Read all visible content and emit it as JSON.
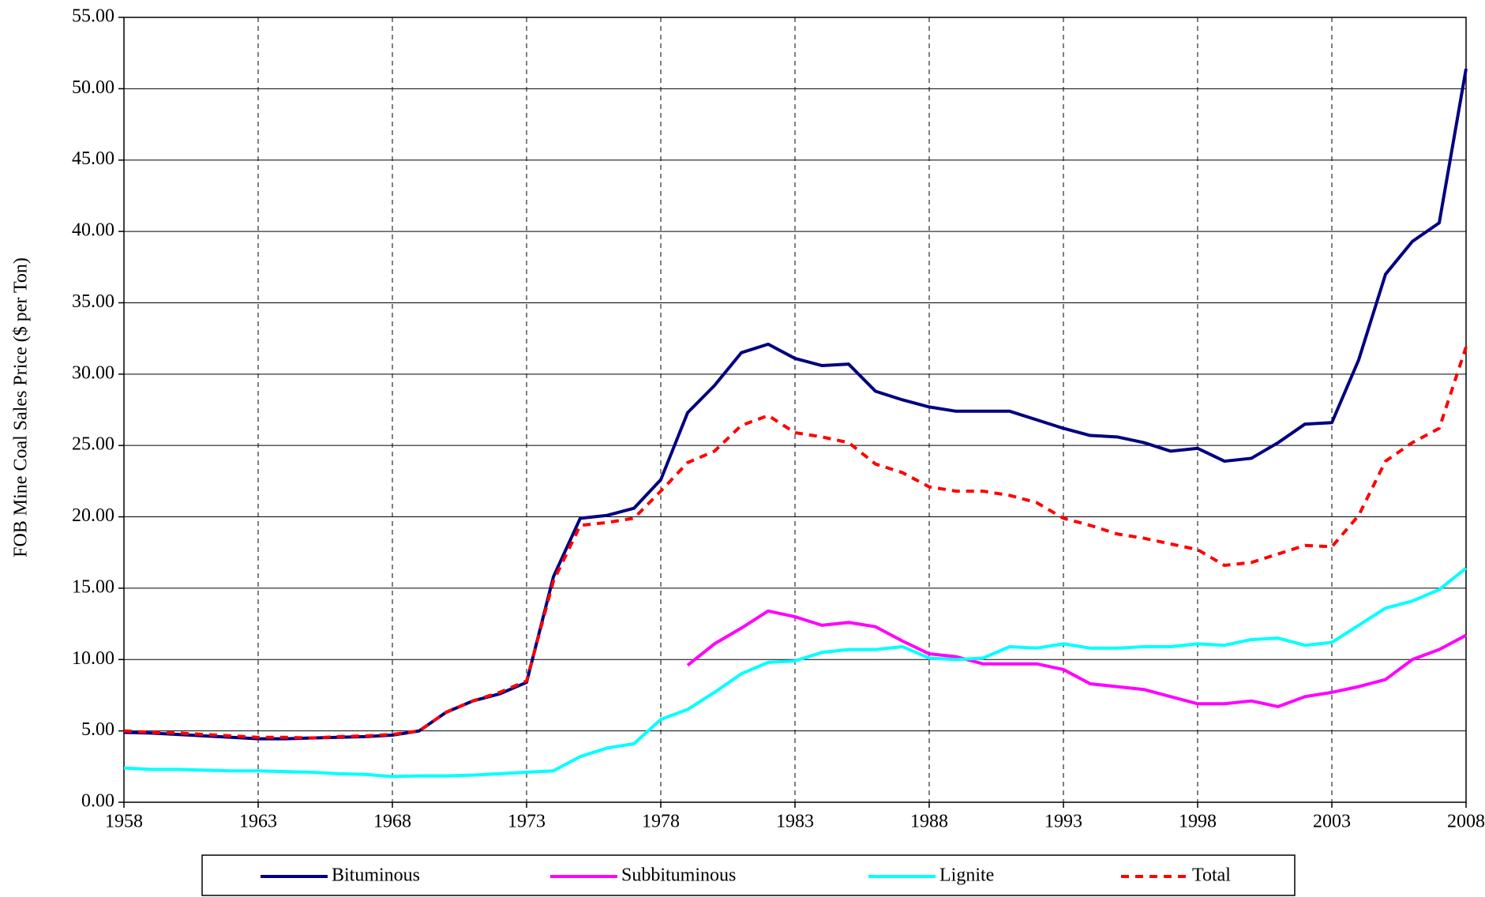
{
  "chart_data": {
    "type": "line",
    "y_label": "FOB Mine Coal Sales Price ($ per Ton)",
    "x": [
      1958,
      1959,
      1960,
      1961,
      1962,
      1963,
      1964,
      1965,
      1966,
      1967,
      1968,
      1969,
      1970,
      1971,
      1972,
      1973,
      1974,
      1975,
      1976,
      1977,
      1978,
      1979,
      1980,
      1981,
      1982,
      1983,
      1984,
      1985,
      1986,
      1987,
      1988,
      1989,
      1990,
      1991,
      1992,
      1993,
      1994,
      1995,
      1996,
      1997,
      1998,
      1999,
      2000,
      2001,
      2002,
      2003,
      2004,
      2005,
      2006,
      2007,
      2008
    ],
    "xlim": [
      1958,
      2008
    ],
    "xticks": [
      1958,
      1963,
      1968,
      1973,
      1978,
      1983,
      1988,
      1993,
      1998,
      2003,
      2008
    ],
    "ylim": [
      0,
      55
    ],
    "yticks": [
      {
        "value": 0,
        "label": "0.00"
      },
      {
        "value": 5,
        "label": "5.00"
      },
      {
        "value": 10,
        "label": "10.00"
      },
      {
        "value": 15,
        "label": "15.00"
      },
      {
        "value": 20,
        "label": "20.00"
      },
      {
        "value": 25,
        "label": "25.00"
      },
      {
        "value": 30,
        "label": "30.00"
      },
      {
        "value": 35,
        "label": "35.00"
      },
      {
        "value": 40,
        "label": "40.00"
      },
      {
        "value": 45,
        "label": "45.00"
      },
      {
        "value": 50,
        "label": "50.00"
      },
      {
        "value": 55,
        "label": "55.00"
      }
    ],
    "grid": true,
    "legend": "bottom",
    "series": [
      {
        "name": "Bituminous",
        "color": "#000080",
        "dash": false,
        "values": [
          4.9,
          4.85,
          4.75,
          4.65,
          4.55,
          4.45,
          4.45,
          4.5,
          4.55,
          4.6,
          4.7,
          5.0,
          6.3,
          7.1,
          7.6,
          8.4,
          15.8,
          19.9,
          20.1,
          20.6,
          22.6,
          27.3,
          29.2,
          31.5,
          32.1,
          31.1,
          30.6,
          30.7,
          28.8,
          28.2,
          27.7,
          27.4,
          27.4,
          27.4,
          26.8,
          26.2,
          25.7,
          25.6,
          25.2,
          24.6,
          24.8,
          23.9,
          24.1,
          25.2,
          26.5,
          26.6,
          31.0,
          37.0,
          39.3,
          40.6,
          51.4
        ]
      },
      {
        "name": "Subbituminous",
        "color": "#ff00ff",
        "dash": false,
        "values": [
          null,
          null,
          null,
          null,
          null,
          null,
          null,
          null,
          null,
          null,
          null,
          null,
          null,
          null,
          null,
          null,
          null,
          null,
          null,
          null,
          null,
          9.6,
          11.1,
          12.2,
          13.4,
          13.0,
          12.4,
          12.6,
          12.3,
          11.3,
          10.4,
          10.2,
          9.7,
          9.7,
          9.7,
          9.3,
          8.3,
          8.1,
          7.9,
          7.4,
          6.9,
          6.9,
          7.1,
          6.7,
          7.4,
          7.7,
          8.1,
          8.6,
          10.0,
          10.7,
          11.7
        ]
      },
      {
        "name": "Lignite",
        "color": "#00ffff",
        "dash": false,
        "values": [
          2.4,
          2.3,
          2.3,
          2.25,
          2.2,
          2.2,
          2.15,
          2.1,
          2.0,
          1.95,
          1.8,
          1.85,
          1.85,
          1.9,
          2.0,
          2.1,
          2.2,
          3.2,
          3.8,
          4.1,
          5.8,
          6.5,
          7.7,
          9.0,
          9.8,
          9.9,
          10.5,
          10.7,
          10.7,
          10.9,
          10.1,
          10.0,
          10.1,
          10.9,
          10.8,
          11.1,
          10.8,
          10.8,
          10.9,
          10.9,
          11.1,
          11.0,
          11.4,
          11.5,
          11.0,
          11.2,
          12.4,
          13.6,
          14.1,
          14.9,
          16.4
        ]
      },
      {
        "name": "Total",
        "color": "#ff0000",
        "dash": true,
        "values": [
          5.0,
          4.9,
          4.85,
          4.75,
          4.65,
          4.55,
          4.55,
          4.5,
          4.6,
          4.65,
          4.75,
          5.0,
          6.3,
          7.1,
          7.7,
          8.5,
          15.5,
          19.4,
          19.6,
          19.9,
          21.8,
          23.8,
          24.6,
          26.4,
          27.1,
          25.9,
          25.6,
          25.2,
          23.7,
          23.1,
          22.1,
          21.8,
          21.8,
          21.5,
          21.0,
          19.9,
          19.4,
          18.8,
          18.5,
          18.1,
          17.7,
          16.6,
          16.8,
          17.4,
          18.0,
          17.9,
          20.1,
          23.9,
          25.2,
          26.2,
          31.9
        ]
      }
    ]
  }
}
